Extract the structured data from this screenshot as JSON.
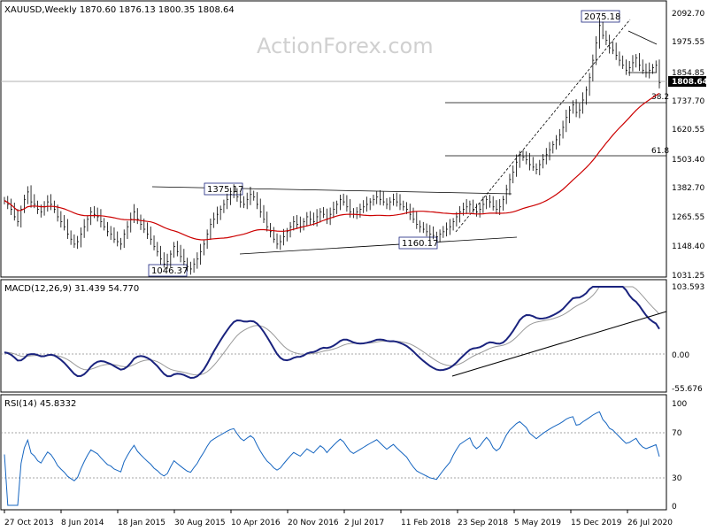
{
  "chart_data": {
    "type": "candlestick",
    "watermark": "ActionForex.com",
    "price_panel": {
      "header": "XAUUSD,Weekly  1870.60 1876.13 1800.35 1808.64",
      "symbol": "XAUUSD",
      "timeframe": "Weekly",
      "ohlc": {
        "open": 1870.6,
        "high": 1876.13,
        "low": 1800.35,
        "close": 1808.64
      },
      "current_price_label": "1808.64",
      "y_ticks": [
        "2092.70",
        "1975.55",
        "1854.85",
        "1737.70",
        "1620.55",
        "1503.40",
        "1382.70",
        "1265.55",
        "1148.40",
        "1031.25"
      ],
      "ylim": [
        1031.25,
        2092.7
      ],
      "close_series": [
        1335,
        1320,
        1300,
        1270,
        1250,
        1300,
        1340,
        1370,
        1330,
        1320,
        1300,
        1290,
        1310,
        1330,
        1320,
        1300,
        1270,
        1250,
        1230,
        1200,
        1180,
        1160,
        1170,
        1200,
        1230,
        1260,
        1290,
        1280,
        1270,
        1250,
        1230,
        1210,
        1200,
        1180,
        1170,
        1160,
        1200,
        1230,
        1260,
        1290,
        1260,
        1240,
        1220,
        1200,
        1180,
        1150,
        1130,
        1100,
        1080,
        1090,
        1120,
        1150,
        1130,
        1110,
        1090,
        1070,
        1060,
        1080,
        1100,
        1130,
        1160,
        1200,
        1240,
        1260,
        1280,
        1300,
        1320,
        1340,
        1360,
        1370,
        1350,
        1330,
        1320,
        1340,
        1360,
        1350,
        1320,
        1290,
        1260,
        1230,
        1210,
        1180,
        1160,
        1170,
        1190,
        1210,
        1230,
        1250,
        1240,
        1230,
        1250,
        1270,
        1260,
        1250,
        1270,
        1290,
        1280,
        1260,
        1280,
        1300,
        1320,
        1340,
        1330,
        1310,
        1290,
        1280,
        1290,
        1300,
        1310,
        1320,
        1330,
        1340,
        1350,
        1340,
        1330,
        1320,
        1330,
        1340,
        1330,
        1320,
        1310,
        1300,
        1280,
        1260,
        1240,
        1230,
        1220,
        1210,
        1200,
        1195,
        1190,
        1200,
        1210,
        1220,
        1230,
        1250,
        1270,
        1290,
        1300,
        1310,
        1320,
        1300,
        1290,
        1300,
        1320,
        1340,
        1330,
        1310,
        1300,
        1310,
        1340,
        1380,
        1420,
        1450,
        1490,
        1520,
        1510,
        1500,
        1480,
        1470,
        1460,
        1480,
        1500,
        1520,
        1540,
        1560,
        1580,
        1600,
        1630,
        1670,
        1700,
        1720,
        1690,
        1700,
        1740,
        1780,
        1830,
        1900,
        1970,
        2040,
        2000,
        1980,
        1950,
        1940,
        1920,
        1900,
        1880,
        1860,
        1870,
        1890,
        1910,
        1880,
        1860,
        1850,
        1860,
        1870,
        1880,
        1810
      ],
      "annotations": [
        {
          "label": "2075.18",
          "price": 2075.18
        },
        {
          "label": "1375.17",
          "price": 1375.17
        },
        {
          "label": "1160.17",
          "price": 1160.17
        },
        {
          "label": "1046.37",
          "price": 1046.37
        },
        {
          "label": "38.2",
          "price": 1737.7
        },
        {
          "label": "61.8",
          "price": 1503.4
        }
      ]
    },
    "macd_panel": {
      "header": "MACD(12,26,9) 31.439 54.770",
      "y_ticks": [
        "103.593",
        "0.00",
        "-55.676"
      ],
      "ylim": [
        -55.676,
        103.593
      ]
    },
    "rsi_panel": {
      "header": "RSI(14) 45.8332",
      "y_ticks": [
        "100",
        "70",
        "30",
        "0"
      ],
      "ylim": [
        0,
        100
      ]
    },
    "x_ticks": [
      "27 Oct 2013",
      "8 Jun 2014",
      "18 Jan 2015",
      "30 Aug 2015",
      "10 Apr 2016",
      "20 Nov 2016",
      "2 Jul 2017",
      "11 Feb 2018",
      "23 Sep 2018",
      "5 May 2019",
      "15 Dec 2019",
      "26 Jul 2020"
    ],
    "colors": {
      "candle": "#000000",
      "ma": "#cc0000",
      "macd": "#1a237e",
      "signal": "#999999",
      "rsi": "#1565c0"
    }
  }
}
